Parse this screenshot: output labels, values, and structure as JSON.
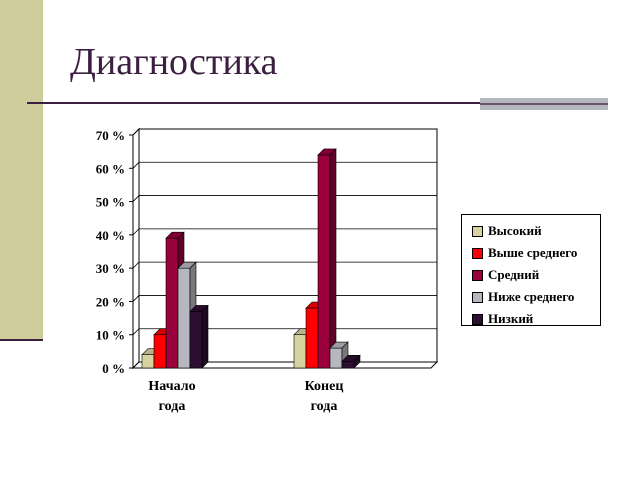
{
  "slide": {
    "title": "Диагностика",
    "colors": {
      "band": "#cfcc9b",
      "title": "#3b1f40",
      "accent": "#b7b7bf"
    }
  },
  "chart_data": {
    "type": "bar",
    "title": "",
    "xlabel": "",
    "ylabel": "",
    "categories": [
      "Начало года",
      "Конец года"
    ],
    "category_lines": [
      [
        "Начало",
        "года"
      ],
      [
        "Конец",
        "года"
      ]
    ],
    "ylim": [
      0,
      70
    ],
    "yticks": [
      0,
      10,
      20,
      30,
      40,
      50,
      60,
      70
    ],
    "ytick_labels": [
      "0 %",
      "10 %",
      "20 %",
      "30 %",
      "40 %",
      "50 %",
      "60 %",
      "70 %"
    ],
    "grid": true,
    "style": "3d-clustered",
    "legend_position": "right",
    "series": [
      {
        "name": "Высокий",
        "color": "#d6d3a1",
        "values": [
          4,
          10
        ]
      },
      {
        "name": "Выше среднего",
        "color": "#ff0000",
        "values": [
          10,
          18
        ]
      },
      {
        "name": "Средний",
        "color": "#99003c",
        "values": [
          39,
          64
        ]
      },
      {
        "name": "Ниже среднего",
        "color": "#b7b7bf",
        "values": [
          30,
          6
        ]
      },
      {
        "name": "Низкий",
        "color": "#2e0f33",
        "values": [
          17,
          2
        ]
      }
    ]
  }
}
